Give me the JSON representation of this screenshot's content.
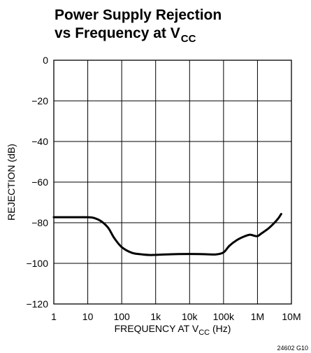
{
  "chart_data": {
    "type": "line",
    "title_line1": "Power Supply Rejection",
    "title_line2_prefix": "vs Frequency at V",
    "title_line2_sub": "CC",
    "ylabel": "REJECTION (dB)",
    "xlabel_prefix": "FREQUENCY AT V",
    "xlabel_sub": "CC",
    "xlabel_suffix": " (Hz)",
    "figure_code": "24602 G10",
    "x_scale": "log",
    "xlim": [
      1,
      10000000
    ],
    "ylim": [
      -120,
      0
    ],
    "grid": true,
    "x_ticks": [
      {
        "value": 1,
        "label": "1"
      },
      {
        "value": 10,
        "label": "10"
      },
      {
        "value": 100,
        "label": "100"
      },
      {
        "value": 1000,
        "label": "1k"
      },
      {
        "value": 10000,
        "label": "10k"
      },
      {
        "value": 100000,
        "label": "100k"
      },
      {
        "value": 1000000,
        "label": "1M"
      },
      {
        "value": 10000000,
        "label": "10M"
      }
    ],
    "y_ticks": [
      {
        "value": 0,
        "label": "0"
      },
      {
        "value": -20,
        "label": "−20"
      },
      {
        "value": -40,
        "label": "−40"
      },
      {
        "value": -60,
        "label": "−60"
      },
      {
        "value": -80,
        "label": "−80"
      },
      {
        "value": -100,
        "label": "−100"
      },
      {
        "value": -120,
        "label": "−120"
      }
    ],
    "series": [
      {
        "x": [
          1,
          3,
          10,
          15,
          25,
          40,
          60,
          100,
          200,
          400,
          700,
          1000,
          3000,
          10000,
          30000,
          60000,
          100000,
          150000,
          250000,
          400000,
          600000,
          800000,
          1000000,
          1300000,
          2000000,
          3000000,
          4000000,
          5000000
        ],
        "y": [
          -77.3,
          -77.3,
          -77.3,
          -77.6,
          -79.3,
          -82.5,
          -87.5,
          -92,
          -94.8,
          -95.6,
          -95.9,
          -95.8,
          -95.5,
          -95.4,
          -95.5,
          -95.6,
          -94.6,
          -91.3,
          -88.5,
          -86.8,
          -85.9,
          -86.4,
          -86.6,
          -85.3,
          -83.1,
          -80.4,
          -78.1,
          -75.7
        ]
      }
    ]
  }
}
